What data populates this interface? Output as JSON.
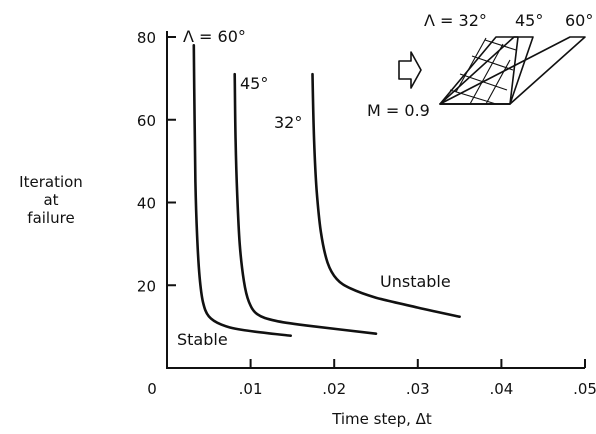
{
  "chart_data": {
    "type": "line",
    "title": "",
    "xlabel": "Time step, Δt",
    "ylabel_lines": [
      "Iteration",
      "at",
      "failure"
    ],
    "xlim": [
      0,
      0.05
    ],
    "ylim": [
      0,
      80
    ],
    "x_ticks": [
      0,
      0.01,
      0.02,
      0.03,
      0.04,
      0.05
    ],
    "x_tick_labels": [
      "0",
      ".01",
      ".02",
      ".03",
      ".04",
      ".05"
    ],
    "y_ticks": [
      0,
      20,
      40,
      60,
      80
    ],
    "y_tick_labels": [
      "",
      "20",
      "40",
      "60",
      "80"
    ],
    "grid": false,
    "series": [
      {
        "name": "",
        "label": "Λ = 60°",
        "points": [
          [
            0.0032,
            78
          ],
          [
            0.0033,
            60
          ],
          [
            0.0034,
            45
          ],
          [
            0.0036,
            32
          ],
          [
            0.0039,
            22
          ],
          [
            0.0043,
            16
          ],
          [
            0.005,
            12.5
          ],
          [
            0.0065,
            10.5
          ],
          [
            0.009,
            9.2
          ],
          [
            0.0148,
            7.8
          ]
        ]
      },
      {
        "name": "",
        "label": "45°",
        "points": [
          [
            0.0081,
            71
          ],
          [
            0.0082,
            55
          ],
          [
            0.0084,
            42
          ],
          [
            0.0087,
            30
          ],
          [
            0.0092,
            21
          ],
          [
            0.0098,
            16
          ],
          [
            0.0108,
            13
          ],
          [
            0.013,
            11.4
          ],
          [
            0.017,
            10.2
          ],
          [
            0.025,
            8.3
          ]
        ]
      },
      {
        "name": "",
        "label": "32°",
        "points": [
          [
            0.0174,
            71
          ],
          [
            0.0176,
            55
          ],
          [
            0.0179,
            43
          ],
          [
            0.0184,
            33
          ],
          [
            0.0192,
            25.5
          ],
          [
            0.0203,
            21.5
          ],
          [
            0.022,
            19.2
          ],
          [
            0.025,
            17.0
          ],
          [
            0.03,
            14.6
          ],
          [
            0.035,
            12.4
          ]
        ]
      }
    ],
    "annotations": {
      "unstable": "Unstable",
      "stable": "Stable"
    },
    "inset": {
      "sweep_labels": [
        "Λ = 32°",
        "45°",
        "60°"
      ],
      "mach": "M = 0.9"
    }
  }
}
